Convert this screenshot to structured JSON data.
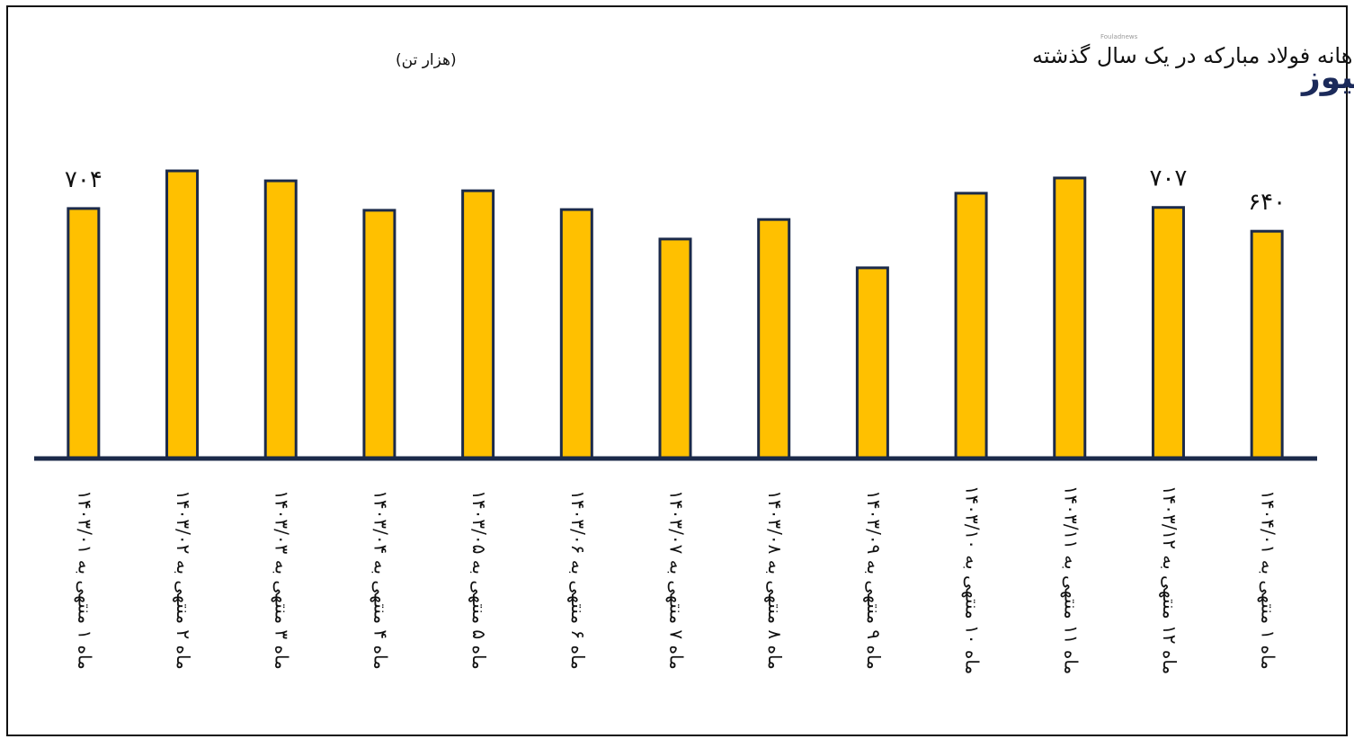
{
  "chart_data": {
    "type": "bar",
    "title": "مقدار کل فروش ماهانه فولاد مبارکه در یک سال گذشته",
    "subtitle": "(هزار تن)",
    "logo": "فولاد نیوز",
    "logo_caption": "Fouladnews",
    "categories": [
      "ماه ۱ منتهی به ۱۴۰۳/۰۱",
      "ماه ۲ منتهی به ۱۴۰۳/۰۲",
      "ماه ۳ منتهی به ۱۴۰۳/۰۳",
      "ماه ۴ منتهی به ۱۴۰۳/۰۴",
      "ماه ۵ منتهی به ۱۴۰۳/۰۵",
      "ماه ۶ منتهی به ۱۴۰۳/۰۶",
      "ماه ۷ منتهی به ۱۴۰۳/۰۷",
      "ماه ۸ منتهی به ۱۴۰۳/۰۸",
      "ماه ۹ منتهی به ۱۴۰۳/۰۹",
      "ماه ۱۰ منتهی به ۱۴۰۳/۱۰",
      "ماه ۱۱ منتهی به ۱۴۰۳/۱۱",
      "ماه ۱۲ منتهی به ۱۴۰۳/۱۲",
      "ماه ۱ منتهی به ۱۴۰۴/۰۱"
    ],
    "values": [
      704,
      810,
      782,
      699,
      754,
      701,
      618,
      673,
      537,
      747,
      790,
      707,
      640
    ],
    "value_labels": [
      "۷۰۴",
      null,
      null,
      null,
      null,
      null,
      null,
      null,
      null,
      null,
      null,
      "۷۰۷",
      "۶۴۰"
    ],
    "color": "#ffc000",
    "ylim": [
      0,
      1000
    ]
  }
}
